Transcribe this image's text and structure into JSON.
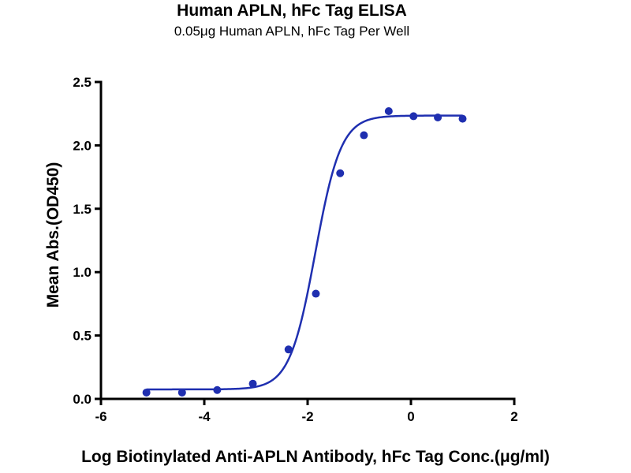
{
  "chart_data": {
    "type": "scatter",
    "title": "Human APLN, hFc Tag ELISA",
    "subtitle": "0.05μg Human APLN, hFc Tag Per Well",
    "xlabel": "Log Biotinylated Anti-APLN Antibody, hFc Tag Conc.(μg/ml)",
    "ylabel": "Mean Abs.(OD450)",
    "xlim": [
      -6,
      2
    ],
    "ylim": [
      0,
      2.5
    ],
    "xticks": [
      -6,
      -4,
      -2,
      0,
      2
    ],
    "yticks": [
      0.0,
      0.5,
      1.0,
      1.5,
      2.0,
      2.5
    ],
    "xtick_labels": [
      "-6",
      "-4",
      "-2",
      "0",
      "2"
    ],
    "ytick_labels": [
      "0.0",
      "0.5",
      "1.0",
      "1.5",
      "2.0",
      "2.5"
    ],
    "grid": false,
    "color": "#1f2fb0",
    "points": {
      "x": [
        -5.12,
        -4.43,
        -3.75,
        -3.06,
        -2.37,
        -1.84,
        -1.37,
        -0.91,
        -0.43,
        0.05,
        0.52,
        1.0
      ],
      "y": [
        0.05,
        0.05,
        0.07,
        0.12,
        0.39,
        0.83,
        1.78,
        2.08,
        2.27,
        2.23,
        2.22,
        2.21
      ]
    },
    "fit_curve": {
      "model": "4PL",
      "bottom": 0.075,
      "top": 2.235,
      "logEC50": -1.85,
      "hill": 1.75,
      "x_range": [
        -5.12,
        1.0
      ]
    }
  }
}
